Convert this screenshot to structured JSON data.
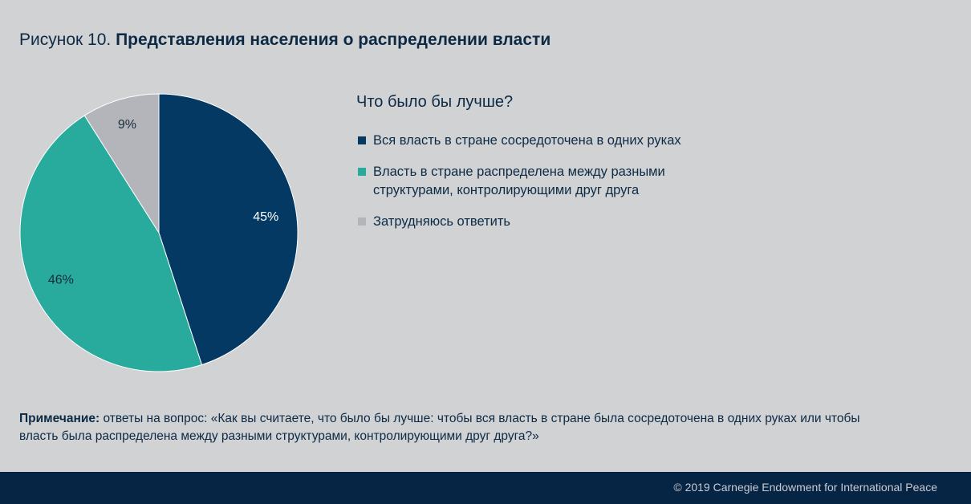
{
  "figure": {
    "title_prefix": "Рисунок 10.",
    "title_main": "Представления населения о распределении власти"
  },
  "legend": {
    "title": "Что было бы лучше?"
  },
  "chart_data": {
    "type": "pie",
    "categories": [
      "Вся власть в стране сосредоточена в одних руках",
      "Власть в стране распределена между разными структурами, контролирующими друг друга",
      "Затрудняюсь ответить"
    ],
    "values": [
      45,
      46,
      9
    ],
    "labels": [
      "45%",
      "46%",
      "9%"
    ],
    "colors": [
      "#033963",
      "#28aa9c",
      "#b3b5ba"
    ],
    "label_colors": [
      "#ffffff",
      "#1a2a3a",
      "#1a2a3a"
    ]
  },
  "note": {
    "prefix": "Примечание:",
    "text": "ответы на вопрос: «Как вы считаете, что было бы лучше: чтобы вся власть в стране была сосредоточена в одних руках или чтобы власть была распределена между разными структурами, контролирующими друг друга?»"
  },
  "footer": {
    "copyright": "© 2019 Carnegie Endowment for International Peace"
  }
}
